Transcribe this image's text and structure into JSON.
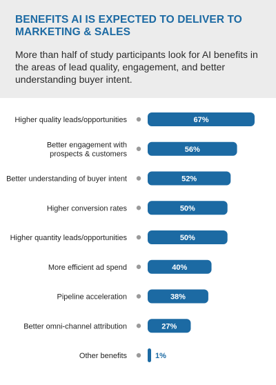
{
  "title": "BENEFITS AI IS EXPECTED TO DELIVER TO MARKETING & SALES",
  "subtitle": "More than half of study participants look for AI benefits in the areas of lead quality, engagement, and better understanding buyer intent.",
  "colors": {
    "bar": "#1c6aa3",
    "dot": "#9a9a9a",
    "header_bg": "#ececec",
    "title": "#1c6aa3"
  },
  "chart_data": {
    "type": "bar",
    "orientation": "horizontal",
    "categories": [
      [
        "Higher quality leads/opportunities"
      ],
      [
        "Better engagement with",
        "prospects & customers"
      ],
      [
        "Better understanding of buyer intent"
      ],
      [
        "Higher conversion rates"
      ],
      [
        "Higher quantity leads/opportunities"
      ],
      [
        "More efficient ad spend"
      ],
      [
        "Pipeline acceleration"
      ],
      [
        "Better omni-channel attribution"
      ],
      [
        "Other benefits"
      ]
    ],
    "values": [
      67,
      56,
      52,
      50,
      50,
      40,
      38,
      27,
      1
    ],
    "value_labels": [
      "67%",
      "56%",
      "52%",
      "50%",
      "50%",
      "40%",
      "38%",
      "27%",
      "1%"
    ],
    "xlim": [
      0,
      67
    ],
    "grid": false,
    "legend": "none"
  }
}
